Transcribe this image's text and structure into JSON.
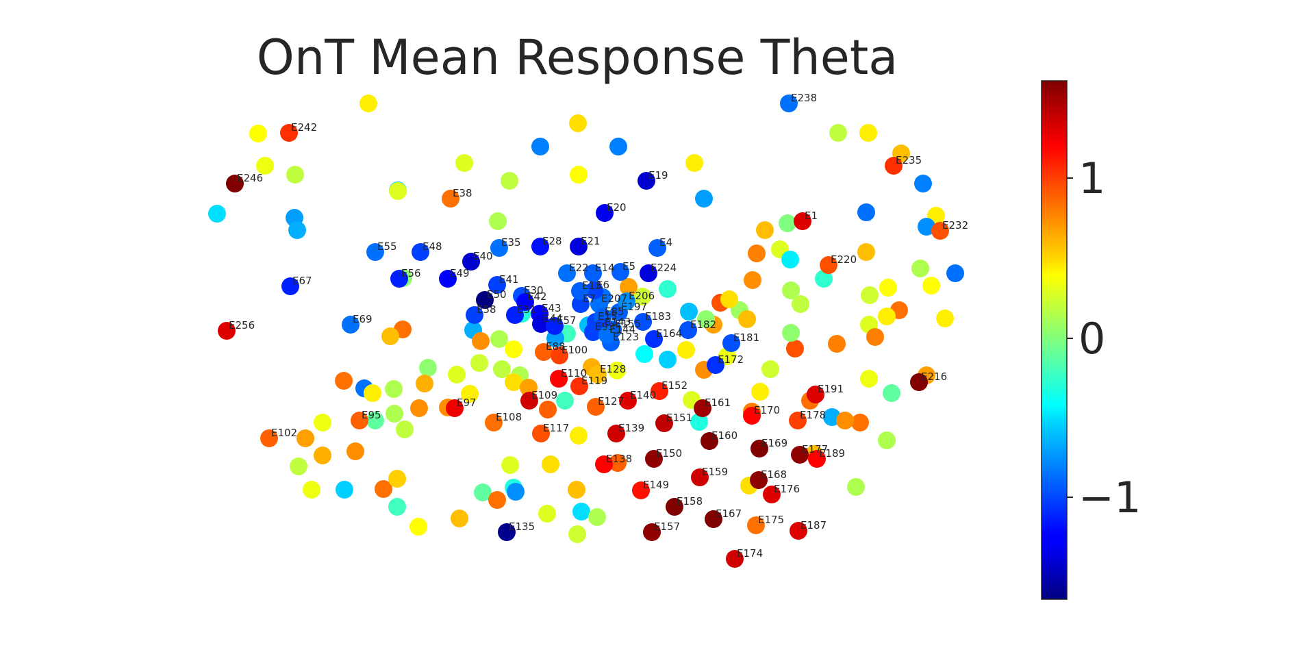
{
  "chart_data": {
    "type": "scatter",
    "title": "OnT Mean Response Theta",
    "colormap": "jet",
    "color_range": [
      -1.6,
      1.6
    ],
    "colorbar": {
      "ticks": [
        1,
        0,
        -1
      ],
      "tick_labels": [
        "1",
        "0",
        "−1"
      ]
    },
    "labeled_points": [
      {
        "label": "E1",
        "value": 1.3
      },
      {
        "label": "E4",
        "value": -0.9
      },
      {
        "label": "E5",
        "value": -0.9
      },
      {
        "label": "E14",
        "value": -0.9
      },
      {
        "label": "E19",
        "value": -1.35
      },
      {
        "label": "E20",
        "value": -1.25
      },
      {
        "label": "E21",
        "value": -1.3
      },
      {
        "label": "E22",
        "value": -0.85
      },
      {
        "label": "E28",
        "value": -1.15
      },
      {
        "label": "E30",
        "value": -0.95
      },
      {
        "label": "E35",
        "value": -0.85
      },
      {
        "label": "E38",
        "value": 0.85
      },
      {
        "label": "E40",
        "value": -1.35
      },
      {
        "label": "E41",
        "value": -1.0
      },
      {
        "label": "E42",
        "value": -1.2
      },
      {
        "label": "E48",
        "value": -1.0
      },
      {
        "label": "E49",
        "value": -1.2
      },
      {
        "label": "E50",
        "value": -1.6
      },
      {
        "label": "E55",
        "value": -0.85
      },
      {
        "label": "E56",
        "value": -1.1
      },
      {
        "label": "E58",
        "value": -1.0
      },
      {
        "label": "E67",
        "value": -1.1
      },
      {
        "label": "E69",
        "value": -0.85
      },
      {
        "label": "E88",
        "value": 0.9
      },
      {
        "label": "E95",
        "value": 0.9
      },
      {
        "label": "E97",
        "value": 1.25
      },
      {
        "label": "E100",
        "value": 1.0
      },
      {
        "label": "E102",
        "value": 0.9
      },
      {
        "label": "E108",
        "value": 0.85
      },
      {
        "label": "E109",
        "value": 1.35
      },
      {
        "label": "E110",
        "value": 1.2
      },
      {
        "label": "E117",
        "value": 0.95
      },
      {
        "label": "E119",
        "value": 1.05
      },
      {
        "label": "E127",
        "value": 0.9
      },
      {
        "label": "E128",
        "value": 0.6
      },
      {
        "label": "E135",
        "value": -1.55
      },
      {
        "label": "E138",
        "value": 1.2
      },
      {
        "label": "E139",
        "value": 1.35
      },
      {
        "label": "E140",
        "value": 1.3
      },
      {
        "label": "E149",
        "value": 1.15
      },
      {
        "label": "E150",
        "value": 1.55
      },
      {
        "label": "E151",
        "value": 1.4
      },
      {
        "label": "E152",
        "value": 1.1
      },
      {
        "label": "E155",
        "value": -0.9
      },
      {
        "label": "E157",
        "value": 1.55
      },
      {
        "label": "E158",
        "value": 1.6
      },
      {
        "label": "E159",
        "value": 1.35
      },
      {
        "label": "E160",
        "value": 1.6
      },
      {
        "label": "E161",
        "value": 1.5
      },
      {
        "label": "E164",
        "value": -1.05
      },
      {
        "label": "E167",
        "value": 1.6
      },
      {
        "label": "E168",
        "value": 1.55
      },
      {
        "label": "E169",
        "value": 1.6
      },
      {
        "label": "E170",
        "value": 1.2
      },
      {
        "label": "E172",
        "value": -1.05
      },
      {
        "label": "E174",
        "value": 1.35
      },
      {
        "label": "E175",
        "value": 0.85
      },
      {
        "label": "E176",
        "value": 1.3
      },
      {
        "label": "E177",
        "value": 1.55
      },
      {
        "label": "E178",
        "value": 1.0
      },
      {
        "label": "E181",
        "value": -0.95
      },
      {
        "label": "E182",
        "value": -0.95
      },
      {
        "label": "E183",
        "value": -0.95
      },
      {
        "label": "E187",
        "value": 1.3
      },
      {
        "label": "E189",
        "value": 1.2
      },
      {
        "label": "E191",
        "value": 1.3
      },
      {
        "label": "E197",
        "value": -0.9
      },
      {
        "label": "E206",
        "value": -0.75
      },
      {
        "label": "E207",
        "value": -0.85
      },
      {
        "label": "E216",
        "value": 1.6
      },
      {
        "label": "E220",
        "value": 0.95
      },
      {
        "label": "E224",
        "value": -1.3
      },
      {
        "label": "E232",
        "value": 0.95
      },
      {
        "label": "E235",
        "value": 1.05
      },
      {
        "label": "E238",
        "value": -0.85
      },
      {
        "label": "E242",
        "value": 1.05
      },
      {
        "label": "E246",
        "value": 1.6
      },
      {
        "label": "E256",
        "value": 1.3
      },
      {
        "label": "E6",
        "value": -1.0
      },
      {
        "label": "E7",
        "value": -1.0
      },
      {
        "label": "E13",
        "value": -0.9
      },
      {
        "label": "E15",
        "value": -1.0
      },
      {
        "label": "E31",
        "value": -1.1
      },
      {
        "label": "E43",
        "value": -1.2
      },
      {
        "label": "E44",
        "value": -1.3
      },
      {
        "label": "E57",
        "value": -1.1
      },
      {
        "label": "E85",
        "value": -0.9
      },
      {
        "label": "E93",
        "value": -1.0
      },
      {
        "label": "E123",
        "value": -0.9
      },
      {
        "label": "E143",
        "value": -1.0
      },
      {
        "label": "E144",
        "value": -0.85
      }
    ],
    "unlabeled_values": [
      0.45,
      0.5,
      0.4,
      0.35,
      -0.8,
      -0.8,
      0.45,
      0.2,
      0.45,
      0.6,
      -0.8,
      0.45,
      0.2,
      0.4,
      0.3,
      0.2,
      -0.55,
      -0.85,
      0.3,
      -0.7,
      -0.7,
      -0.65,
      0.05,
      0.15,
      -0.5,
      -0.75,
      0.4,
      0.45,
      0.15,
      0.85,
      -0.85,
      0.3,
      0.25,
      0.35,
      -0.1,
      0.15,
      0.15,
      -0.65,
      0.8,
      0.85,
      0.2,
      0.95,
      0.25,
      0.45,
      0.35,
      0.8,
      0.7,
      0.05,
      -0.6,
      0.3,
      0.75,
      0.95,
      0.1,
      -0.25,
      0.25,
      0.7,
      -0.85,
      -0.6,
      -0.2,
      -0.7,
      -0.3,
      0.15,
      0.4,
      0.15,
      -0.65,
      0.25,
      0.3,
      0.05,
      0.85,
      0.6,
      0.85,
      -0.85,
      0.15,
      0.65,
      0.45,
      0.15,
      0.75,
      0.75,
      0.45,
      0.75,
      0.2,
      0.5,
      0.7,
      0.9,
      -0.2,
      0.65,
      0.35,
      -0.4,
      -0.55,
      0.45,
      0.5,
      0.6,
      0.75,
      0.8,
      0.3,
      0.05,
      -0.45,
      0.6,
      0.15,
      -0.25,
      0.0,
      0.6,
      0.4,
      0.45,
      0.8,
      0.7,
      0.85,
      0.75,
      0.6,
      0.5,
      -0.3,
      0.45,
      0.9,
      0.5,
      0.6,
      -0.5,
      0.3,
      -0.1,
      0.2,
      -0.1,
      0.35,
      0.7,
      0.65,
      0.2,
      0.35,
      -0.55,
      0.75,
      0.85,
      0.55,
      -0.2,
      0.4,
      0.6,
      0.85,
      -0.3,
      -0.75,
      0.3,
      0.25,
      0.15
    ]
  }
}
